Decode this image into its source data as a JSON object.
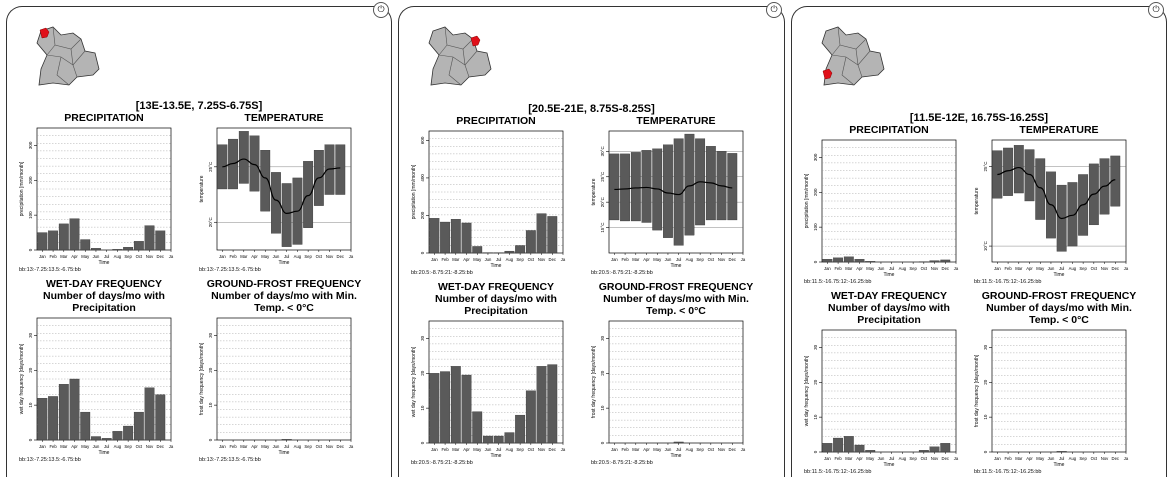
{
  "months": [
    "Jan",
    "Feb",
    "Mar",
    "Apr",
    "May",
    "Jun",
    "Jul",
    "Aug",
    "Sep",
    "Oct",
    "Nov",
    "Dec",
    "Ja"
  ],
  "labels": {
    "precip_title": "PRECIPITATION",
    "temp_title": "TEMPERATURE",
    "wet_title": "WET-DAY FREQUENCY",
    "wet_sub1": "Number of days/mo with",
    "wet_sub2": "Precipitation",
    "frost_title": "GROUND-FROST FREQUENCY",
    "frost_sub1": "Number of days/mo with Min.",
    "frost_sub2": "Temp. < 0°C",
    "time": "Time",
    "precip_ylabel": "precipitation [mm/month]",
    "temp_ylabel": "temperature",
    "wet_ylabel": "wet day frequency [days/month]",
    "frost_ylabel": "frost day frequency [days/month]",
    "power_glyph": "⏻"
  },
  "colors": {
    "bar": "#5a5a5a",
    "map_land": "#b4b4b4",
    "marker": "#e0101a"
  },
  "panels": [
    {
      "coord": "[13E-13.5E, 7.25S-6.75S]",
      "footnote": "bb:13:-7.25:13.5:-6.75:bb",
      "chart_data": [
        {
          "type": "bar",
          "id": "precipitation",
          "values": [
            50,
            55,
            75,
            90,
            30,
            5,
            0,
            2,
            8,
            25,
            70,
            55
          ],
          "ylim": [
            0,
            350
          ],
          "yticks": [
            0,
            100,
            200,
            300
          ]
        },
        {
          "type": "bar",
          "id": "temperature",
          "tick_labels": [
            "20°C",
            "25°C"
          ],
          "ylim": [
            17.5,
            28.5
          ],
          "min": [
            23,
            23,
            23.5,
            22.8,
            21,
            19,
            17.8,
            18,
            19.5,
            21.5,
            22.5,
            22.5
          ],
          "max": [
            27,
            27.5,
            28.2,
            27.8,
            26.5,
            24.5,
            23.5,
            24,
            25.5,
            26.5,
            27,
            27
          ],
          "mean": [
            25,
            25.3,
            25.7,
            25.2,
            24,
            22,
            20.8,
            21,
            22.4,
            24,
            24.8,
            24.9
          ]
        },
        {
          "type": "bar",
          "id": "wet-day",
          "values": [
            12,
            12.5,
            16,
            17.5,
            8,
            1,
            0.5,
            2.5,
            4,
            8,
            15,
            13
          ],
          "ylim": [
            0,
            35
          ],
          "yticks": [
            0,
            10,
            20,
            30
          ]
        },
        {
          "type": "bar",
          "id": "ground-frost",
          "values": [
            0,
            0,
            0,
            0,
            0,
            0,
            0.2,
            0,
            0,
            0,
            0,
            0
          ],
          "ylim": [
            0,
            35
          ],
          "yticks": [
            0,
            10,
            20,
            30
          ]
        }
      ]
    },
    {
      "coord": "[20.5E-21E, 8.75S-8.25S]",
      "footnote": "bb:20.5:-8.75:21:-8.25:bb",
      "chart_data": [
        {
          "type": "bar",
          "id": "precipitation",
          "values": [
            185,
            165,
            180,
            160,
            35,
            2,
            1,
            10,
            40,
            120,
            210,
            195
          ],
          "ylim": [
            0,
            650
          ],
          "yticks": [
            0,
            200,
            400,
            600
          ]
        },
        {
          "type": "bar",
          "id": "temperature",
          "tick_labels": [
            "15°C",
            "20°C",
            "25°C",
            "30°C"
          ],
          "ylim": [
            10,
            34
          ],
          "min": [
            16.5,
            16.3,
            16.3,
            16,
            14.5,
            13,
            11.5,
            13.5,
            15.5,
            16.5,
            16.5,
            16.5
          ],
          "max": [
            29.5,
            29.5,
            29.8,
            30.2,
            30.5,
            31.3,
            32.5,
            33.4,
            32.5,
            31,
            30,
            29.6
          ],
          "mean": [
            22.5,
            22.6,
            22.8,
            22.9,
            22.6,
            21.8,
            21.5,
            23.2,
            24,
            23.8,
            23.2,
            22.8
          ]
        },
        {
          "type": "bar",
          "id": "wet-day",
          "values": [
            20,
            20.5,
            22,
            19.5,
            9,
            2,
            2,
            3,
            8,
            15,
            22,
            22.5
          ],
          "ylim": [
            0,
            35
          ],
          "yticks": [
            0,
            10,
            20,
            30
          ]
        },
        {
          "type": "bar",
          "id": "ground-frost",
          "values": [
            0,
            0,
            0,
            0,
            0,
            0,
            0.3,
            0,
            0,
            0,
            0,
            0
          ],
          "ylim": [
            0,
            35
          ],
          "yticks": [
            0,
            10,
            20,
            30
          ]
        }
      ]
    },
    {
      "coord": "[11.5E-12E, 16.75S-16.25S]",
      "footnote": "bb:11.5:-16.75:12:-16.25:bb",
      "chart_data": [
        {
          "type": "bar",
          "id": "precipitation",
          "values": [
            8,
            12,
            15,
            8,
            2,
            0,
            0,
            0,
            0,
            1,
            4,
            6
          ],
          "ylim": [
            0,
            350
          ],
          "yticks": [
            0,
            100,
            200,
            300
          ]
        },
        {
          "type": "bar",
          "id": "temperature",
          "tick_labels": [
            "10°C",
            "25°C"
          ],
          "ylim": [
            7,
            30
          ],
          "min": [
            19,
            19.5,
            20,
            18.5,
            15,
            11.5,
            9,
            10,
            12,
            14,
            16,
            17.5
          ],
          "max": [
            28,
            28.5,
            29,
            28.2,
            26.5,
            24,
            21.5,
            22,
            23.5,
            25.5,
            26.5,
            27
          ],
          "mean": [
            23.5,
            24.2,
            24.8,
            23.5,
            21,
            17.8,
            15.2,
            15.8,
            17.8,
            19.8,
            21.3,
            22.5
          ]
        },
        {
          "type": "bar",
          "id": "wet-day",
          "values": [
            2.5,
            4,
            4.5,
            2,
            0.5,
            0,
            0,
            0,
            0,
            0.5,
            1.5,
            2.5
          ],
          "ylim": [
            0,
            35
          ],
          "yticks": [
            0,
            10,
            20,
            30
          ]
        },
        {
          "type": "bar",
          "id": "ground-frost",
          "values": [
            0,
            0,
            0,
            0,
            0,
            0,
            0.2,
            0,
            0,
            0,
            0,
            0
          ],
          "ylim": [
            0,
            35
          ],
          "yticks": [
            0,
            10,
            20,
            30
          ]
        }
      ]
    }
  ]
}
